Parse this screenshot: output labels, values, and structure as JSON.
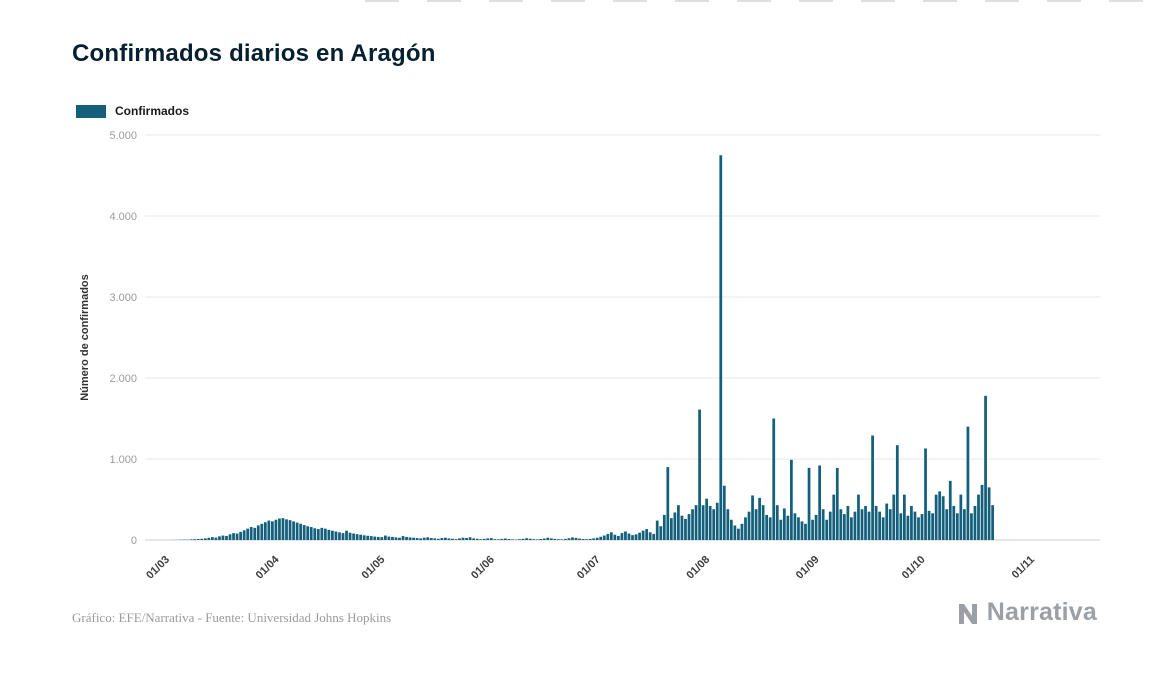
{
  "page": {
    "title": "Confirmados diarios en Aragón"
  },
  "legend": {
    "label": "Confirmados"
  },
  "footer": {
    "credit": "Gráfico: EFE/Narrativa - Fuente: Universidad Johns Hopkins",
    "brand": "Narrativa"
  },
  "colors": {
    "bar": "#14607c",
    "grid": "#e7e7e7",
    "zero_line": "#cfcfcf",
    "y_tick_text": "#9c9c9c",
    "x_tick_text": "#3d3d3d",
    "axis_title_text": "#333333",
    "title_text": "#07202f",
    "brand_gray": "#9aa0a6"
  },
  "chart_data": {
    "type": "bar",
    "title": "Confirmados diarios en Aragón",
    "xlabel": "",
    "ylabel": "Número de confirmados",
    "legend_entries": [
      "Confirmados"
    ],
    "legend_position": "top-left",
    "grid": true,
    "ylim": [
      0,
      5000
    ],
    "y_ticks": [
      0,
      1000,
      2000,
      3000,
      4000,
      5000
    ],
    "y_tick_labels": [
      "0",
      "1.000",
      "2.000",
      "3.000",
      "4.000",
      "5.000"
    ],
    "x_tick_labels": [
      "01/03",
      "01/04",
      "01/05",
      "01/06",
      "01/07",
      "01/08",
      "01/09",
      "01/10",
      "01/11"
    ],
    "x_tick_day_index": [
      0,
      31,
      61,
      92,
      122,
      153,
      184,
      214,
      245
    ],
    "x_start_label": "01/03",
    "x_unit": "day",
    "series": [
      {
        "name": "Confirmados",
        "color": "#14607c",
        "values": [
          0,
          1,
          2,
          3,
          5,
          4,
          8,
          10,
          12,
          15,
          20,
          28,
          35,
          30,
          45,
          55,
          50,
          70,
          85,
          80,
          100,
          120,
          140,
          160,
          150,
          180,
          200,
          220,
          240,
          230,
          250,
          265,
          270,
          255,
          245,
          230,
          215,
          200,
          185,
          170,
          160,
          145,
          135,
          150,
          140,
          125,
          115,
          105,
          95,
          85,
          115,
          90,
          80,
          72,
          65,
          58,
          52,
          48,
          42,
          38,
          35,
          55,
          42,
          38,
          32,
          28,
          48,
          38,
          32,
          28,
          24,
          20,
          28,
          34,
          24,
          20,
          15,
          24,
          28,
          20,
          15,
          10,
          20,
          28,
          24,
          34,
          20,
          15,
          10,
          14,
          20,
          24,
          10,
          8,
          14,
          18,
          12,
          8,
          5,
          10,
          14,
          22,
          16,
          10,
          8,
          12,
          18,
          28,
          20,
          14,
          10,
          8,
          14,
          22,
          32,
          26,
          18,
          12,
          10,
          14,
          20,
          28,
          40,
          55,
          75,
          95,
          65,
          50,
          85,
          105,
          80,
          60,
          70,
          90,
          115,
          135,
          95,
          75,
          240,
          170,
          310,
          900,
          270,
          340,
          430,
          300,
          260,
          320,
          380,
          430,
          1610,
          430,
          510,
          420,
          380,
          460,
          4750,
          670,
          380,
          250,
          180,
          140,
          200,
          280,
          350,
          550,
          380,
          520,
          430,
          310,
          280,
          1500,
          430,
          250,
          390,
          300,
          990,
          330,
          280,
          230,
          200,
          890,
          250,
          310,
          920,
          380,
          250,
          350,
          560,
          890,
          380,
          320,
          420,
          280,
          350,
          560,
          380,
          420,
          350,
          1290,
          420,
          350,
          280,
          450,
          380,
          560,
          1170,
          330,
          560,
          300,
          420,
          350,
          280,
          320,
          1130,
          360,
          330,
          560,
          600,
          540,
          380,
          730,
          420,
          330,
          560,
          380,
          1400,
          330,
          420,
          560,
          680,
          1780,
          650,
          430
        ]
      }
    ]
  }
}
